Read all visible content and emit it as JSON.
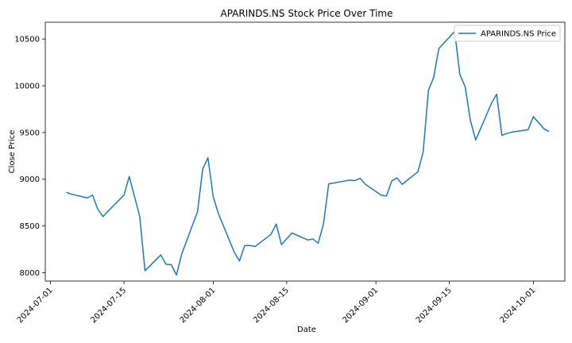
{
  "chart_data": {
    "type": "line",
    "title": "APARINDS.NS Stock Price Over Time",
    "xlabel": "Date",
    "ylabel": "Close Price",
    "legend_position": "top-right",
    "grid": false,
    "xlim": [
      "2024-06-30",
      "2024-10-07"
    ],
    "ylim": [
      7910,
      10680
    ],
    "x_ticks": [
      "2024-07-01",
      "2024-07-15",
      "2024-08-01",
      "2024-08-15",
      "2024-09-01",
      "2024-09-15",
      "2024-10-01"
    ],
    "y_ticks": [
      8000,
      8500,
      9000,
      9500,
      10000,
      10500
    ],
    "series": [
      {
        "name": "APARINDS.NS Price",
        "color": "#1f77b4",
        "x": [
          "2024-07-04",
          "2024-07-05",
          "2024-07-08",
          "2024-07-09",
          "2024-07-10",
          "2024-07-11",
          "2024-07-12",
          "2024-07-15",
          "2024-07-16",
          "2024-07-18",
          "2024-07-19",
          "2024-07-22",
          "2024-07-23",
          "2024-07-24",
          "2024-07-25",
          "2024-07-26",
          "2024-07-29",
          "2024-07-30",
          "2024-07-31",
          "2024-08-01",
          "2024-08-02",
          "2024-08-05",
          "2024-08-06",
          "2024-08-07",
          "2024-08-08",
          "2024-08-09",
          "2024-08-12",
          "2024-08-13",
          "2024-08-14",
          "2024-08-16",
          "2024-08-19",
          "2024-08-20",
          "2024-08-21",
          "2024-08-22",
          "2024-08-23",
          "2024-08-26",
          "2024-08-27",
          "2024-08-28",
          "2024-08-29",
          "2024-08-30",
          "2024-09-02",
          "2024-09-03",
          "2024-09-04",
          "2024-09-05",
          "2024-09-06",
          "2024-09-09",
          "2024-09-10",
          "2024-09-11",
          "2024-09-12",
          "2024-09-13",
          "2024-09-16",
          "2024-09-17",
          "2024-09-18",
          "2024-09-19",
          "2024-09-20",
          "2024-09-23",
          "2024-09-24",
          "2024-09-25",
          "2024-09-26",
          "2024-09-27",
          "2024-09-30",
          "2024-10-01",
          "2024-10-03",
          "2024-10-04"
        ],
        "values": [
          8860,
          8840,
          8800,
          8830,
          8680,
          8600,
          8660,
          8830,
          9030,
          8600,
          8020,
          8190,
          8090,
          8085,
          7975,
          8200,
          8650,
          9110,
          9230,
          8810,
          8630,
          8220,
          8125,
          8290,
          8290,
          8280,
          8410,
          8520,
          8300,
          8425,
          8350,
          8360,
          8315,
          8520,
          8950,
          8980,
          8990,
          8985,
          9010,
          8945,
          8830,
          8820,
          8980,
          9015,
          8945,
          9080,
          9290,
          9950,
          10090,
          10400,
          10580,
          10120,
          9990,
          9630,
          9420,
          9810,
          9910,
          9470,
          9490,
          9505,
          9530,
          9670,
          9540,
          9510
        ]
      }
    ]
  }
}
